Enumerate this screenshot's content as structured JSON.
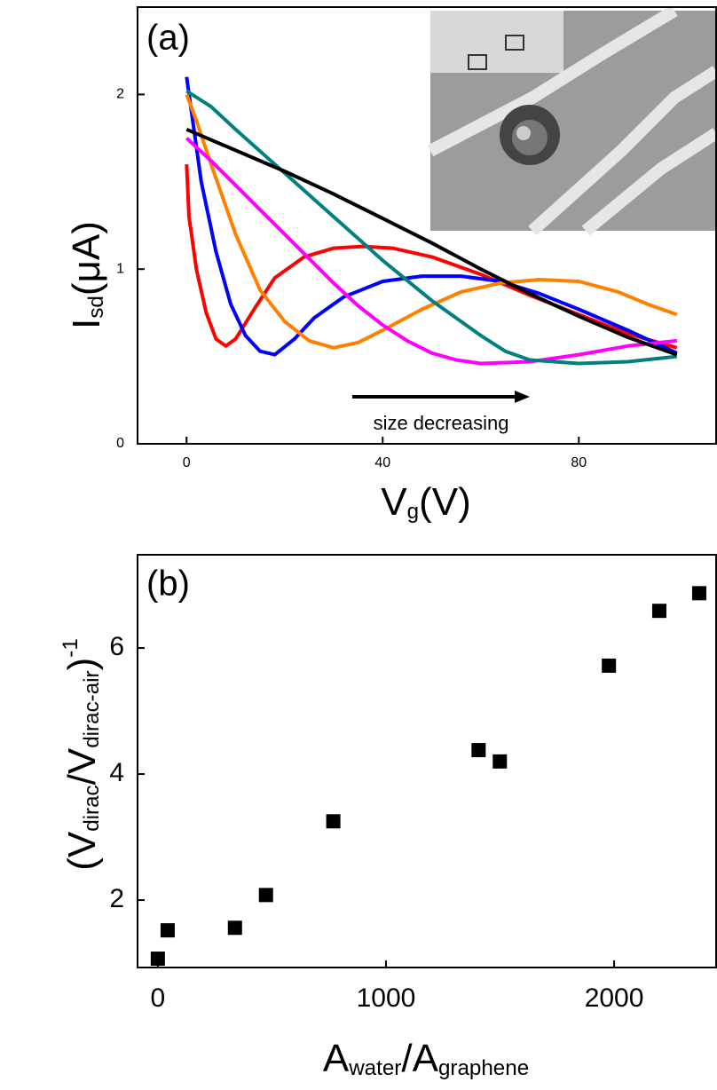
{
  "chart_data": [
    {
      "type": "line",
      "panel_label": "(a)",
      "annotation": "size decreasing",
      "x_label_parts": [
        "V",
        "g",
        "(V)"
      ],
      "y_label_parts": [
        "I",
        "sd",
        "(μA)"
      ],
      "xlim": [
        -10,
        108
      ],
      "ylim": [
        0,
        2.5
      ],
      "xticks": [
        0,
        40,
        80
      ],
      "yticks": [
        0,
        1,
        2
      ],
      "series": [
        {
          "color": "#ff0000",
          "x": [
            0,
            0.5,
            1,
            2,
            4,
            6,
            8,
            10,
            14,
            18,
            24,
            30,
            36,
            42,
            50,
            60,
            70,
            80,
            90,
            100
          ],
          "values": [
            1.6,
            1.3,
            1.2,
            1.0,
            0.75,
            0.6,
            0.56,
            0.6,
            0.78,
            0.95,
            1.07,
            1.12,
            1.13,
            1.12,
            1.07,
            0.97,
            0.85,
            0.74,
            0.63,
            0.55
          ]
        },
        {
          "color": "#0000ff",
          "x": [
            0,
            1,
            3,
            6,
            9,
            12,
            15,
            18,
            22,
            26,
            32,
            40,
            48,
            56,
            64,
            72,
            80,
            90,
            100
          ],
          "values": [
            2.1,
            1.9,
            1.5,
            1.1,
            0.8,
            0.62,
            0.53,
            0.51,
            0.6,
            0.72,
            0.84,
            0.93,
            0.96,
            0.96,
            0.93,
            0.86,
            0.77,
            0.65,
            0.52
          ]
        },
        {
          "color": "#ff8000",
          "x": [
            0,
            2,
            5,
            10,
            15,
            20,
            25,
            30,
            35,
            40,
            48,
            56,
            64,
            72,
            80,
            88,
            94,
            100
          ],
          "values": [
            2.0,
            1.85,
            1.6,
            1.2,
            0.88,
            0.7,
            0.59,
            0.55,
            0.58,
            0.65,
            0.77,
            0.87,
            0.92,
            0.94,
            0.93,
            0.87,
            0.8,
            0.74
          ]
        },
        {
          "color": "#ff00ff",
          "x": [
            0,
            5,
            10,
            15,
            20,
            25,
            30,
            35,
            40,
            45,
            50,
            55,
            60,
            70,
            80,
            90,
            100
          ],
          "values": [
            1.75,
            1.62,
            1.48,
            1.34,
            1.2,
            1.06,
            0.92,
            0.79,
            0.68,
            0.59,
            0.52,
            0.48,
            0.46,
            0.47,
            0.51,
            0.56,
            0.59
          ]
        },
        {
          "color": "#008080",
          "x": [
            0,
            5,
            10,
            20,
            30,
            40,
            50,
            60,
            65,
            70,
            80,
            90,
            100
          ],
          "values": [
            2.02,
            1.93,
            1.8,
            1.55,
            1.3,
            1.05,
            0.82,
            0.62,
            0.53,
            0.48,
            0.46,
            0.47,
            0.5
          ]
        },
        {
          "color": "#000000",
          "x": [
            0,
            10,
            20,
            30,
            40,
            50,
            60,
            70,
            80,
            90,
            100
          ],
          "values": [
            1.8,
            1.68,
            1.56,
            1.43,
            1.29,
            1.15,
            1.0,
            0.86,
            0.73,
            0.61,
            0.51
          ]
        }
      ]
    },
    {
      "type": "scatter",
      "panel_label": "(b)",
      "x_label_parts": [
        "A",
        "water",
        "/A",
        "graphene"
      ],
      "y_label_parts": [
        "(V",
        "dirac",
        "/V",
        "dirac-air",
        ")",
        "-1"
      ],
      "xlim": [
        -89,
        2447
      ],
      "ylim": [
        0.93,
        7.48
      ],
      "xticks": [
        0,
        1000,
        2000
      ],
      "yticks": [
        2,
        4,
        6
      ],
      "color": "#000000",
      "x": [
        0,
        43,
        338,
        474,
        769,
        1406,
        1499,
        1977,
        2198,
        2373
      ],
      "values": [
        1.07,
        1.52,
        1.56,
        2.08,
        3.25,
        4.38,
        4.2,
        5.72,
        6.59,
        6.87
      ]
    }
  ]
}
